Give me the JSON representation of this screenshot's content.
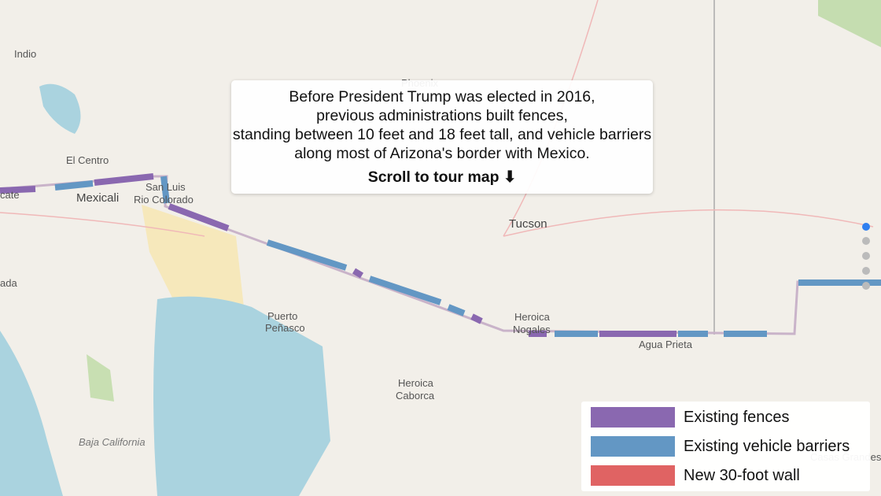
{
  "places": [
    {
      "label": "Indio"
    },
    {
      "label": "Phoenix"
    },
    {
      "label": "El Centro"
    },
    {
      "label": "Mexicali"
    },
    {
      "label": "San Luis"
    },
    {
      "label": "Rio Colorado"
    },
    {
      "label": "Tucson"
    },
    {
      "label": "Puerto"
    },
    {
      "label": "Peñasco"
    },
    {
      "label": "Heroica"
    },
    {
      "label": "Nogales"
    },
    {
      "label": "Agua Prieta"
    },
    {
      "label": "Heroica"
    },
    {
      "label": "Caborca"
    },
    {
      "label": "Baja California"
    },
    {
      "label": "Casas Grandes"
    },
    {
      "label": "cate"
    },
    {
      "label": "ada"
    }
  ],
  "popup": {
    "lines": [
      "Before President Trump was elected in 2016,",
      "previous administrations built fences,",
      "standing between 10 feet and 18 feet tall, and vehicle barriers",
      "along most of Arizona's border with Mexico."
    ],
    "scroll": "Scroll to tour map ⬇"
  },
  "legend": [
    {
      "label": "Existing fences",
      "color": "#8a68b0"
    },
    {
      "label": "Existing vehicle barriers",
      "color": "#6397c4"
    },
    {
      "label": "New 30-foot wall",
      "color": "#e06363"
    }
  ]
}
